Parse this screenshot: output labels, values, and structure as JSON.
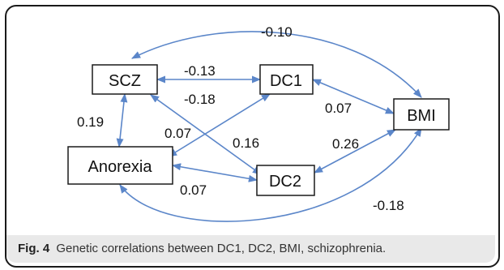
{
  "figure": {
    "caption_label": "Fig. 4",
    "caption_text": "Genetic correlations between DC1, DC2, BMI, schizophrenia."
  },
  "nodes": {
    "scz": "SCZ",
    "dc1": "DC1",
    "dc2": "DC2",
    "bmi": "BMI",
    "anorexia": "Anorexia"
  },
  "edges": {
    "scz_bmi": "-0.10",
    "scz_dc1": "-0.13",
    "dc1_anorexia": "-0.18",
    "dc1_bmi": "0.07",
    "scz_anorexia": "0.19",
    "anorexia_dc2_upper": "0.07",
    "scz_dc2": "0.16",
    "dc2_bmi": "0.26",
    "anorexia_dc2_lower": "0.07",
    "anorexia_bmi": "-0.18"
  },
  "colors": {
    "arrow": "#5b86c9",
    "caption_band": "#e9e9e9"
  }
}
